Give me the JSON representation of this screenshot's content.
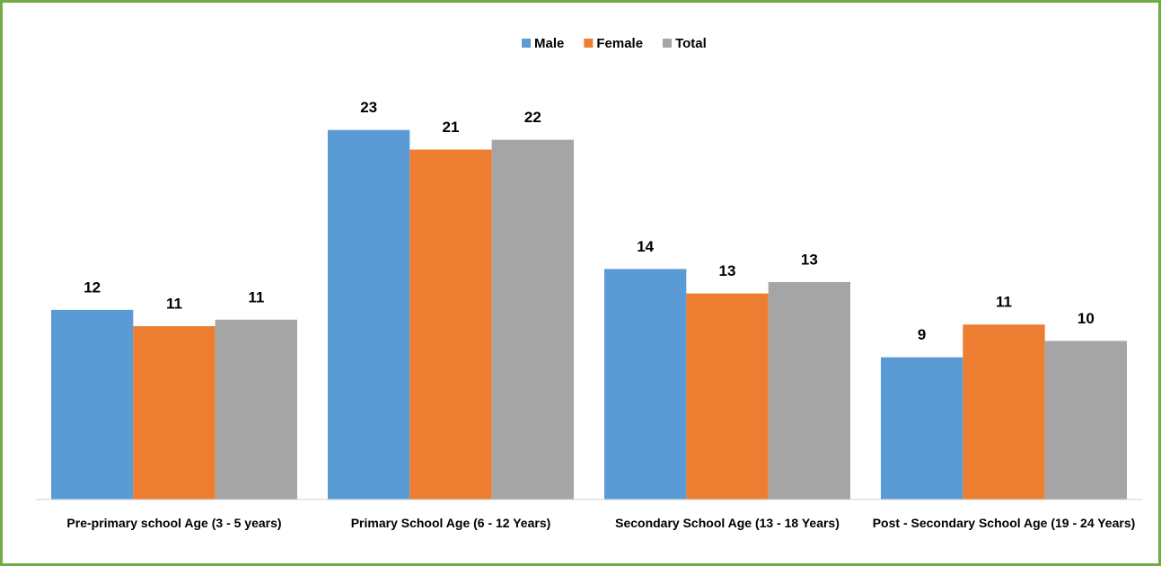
{
  "chart_data": {
    "type": "bar",
    "categories": [
      "Pre-primary school Age (3 - 5 years)",
      "Primary School Age (6 - 12 Years)",
      "Secondary School Age (13 - 18 Years)",
      "Post - Secondary School Age (19 - 24 Years)"
    ],
    "series": [
      {
        "name": "Male",
        "color": "#5b9bd5",
        "values": [
          11.6,
          22.6,
          14.1,
          8.7
        ],
        "value_labels": [
          "12",
          "23",
          "14",
          "9"
        ]
      },
      {
        "name": "Female",
        "color": "#ed7d31",
        "values": [
          10.6,
          21.4,
          12.6,
          10.7
        ],
        "value_labels": [
          "11",
          "21",
          "13",
          "11"
        ]
      },
      {
        "name": "Total",
        "color": "#a5a5a5",
        "values": [
          11.0,
          22.0,
          13.3,
          9.7
        ],
        "value_labels": [
          "11",
          "22",
          "13",
          "10"
        ]
      }
    ],
    "ylim": [
      0,
      28
    ],
    "legend": "top"
  }
}
